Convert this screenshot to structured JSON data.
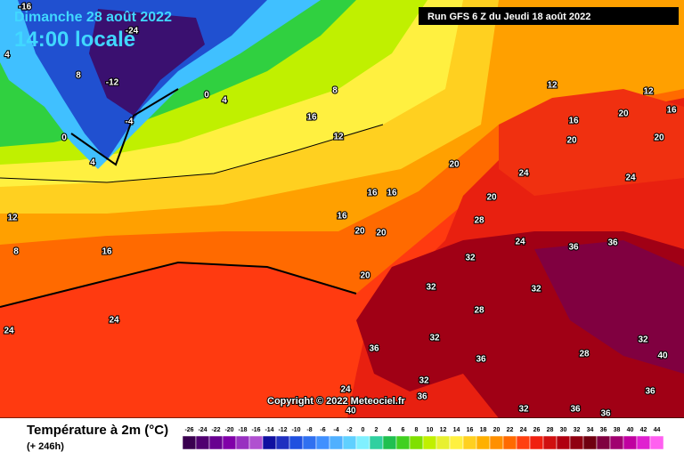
{
  "header": {
    "date": "Dimanche 28 août 2022",
    "time": "14:00 locale",
    "run": "Run GFS 6 Z du Jeudi 18 août 2022"
  },
  "copyright": "Copyright © 2022 Meteociel.fr",
  "legend": {
    "title": "Température à 2m (°C)",
    "lead": "(+ 246h)",
    "labels": [
      -26,
      -24,
      -22,
      -20,
      -18,
      -16,
      -14,
      -12,
      -10,
      -8,
      -6,
      -4,
      -2,
      0,
      2,
      4,
      6,
      8,
      10,
      12,
      14,
      16,
      18,
      20,
      22,
      24,
      26,
      28,
      30,
      32,
      34,
      36,
      38,
      40,
      42,
      44
    ],
    "colors": [
      "#3a0050",
      "#500070",
      "#680090",
      "#8000a8",
      "#9830c0",
      "#b050d0",
      "#1010a0",
      "#2030c0",
      "#2050e0",
      "#3070f0",
      "#4090ff",
      "#50b0ff",
      "#60d0ff",
      "#80f0ff",
      "#30d0a0",
      "#20c050",
      "#40d020",
      "#80e000",
      "#c0f000",
      "#e8f030",
      "#fff040",
      "#ffd020",
      "#ffb000",
      "#ff9000",
      "#ff6a00",
      "#ff4010",
      "#f02010",
      "#d01010",
      "#b00010",
      "#900010",
      "#700010",
      "#800040",
      "#a00070",
      "#c000a0",
      "#e020d0",
      "#ff60f0"
    ]
  },
  "map": {
    "labels": [
      -16,
      -24,
      4,
      8,
      -12,
      0,
      4,
      8,
      -4,
      0,
      4,
      16,
      12,
      12,
      16,
      8,
      16,
      20,
      20,
      16,
      16,
      20,
      24,
      24,
      20,
      24,
      20,
      20,
      16,
      12,
      12,
      24,
      28,
      24,
      36,
      36,
      32,
      32,
      28,
      32,
      36,
      32,
      32,
      36,
      28,
      40,
      32,
      36,
      36,
      24,
      40,
      36,
      20,
      16,
      20,
      32,
      36
    ]
  }
}
